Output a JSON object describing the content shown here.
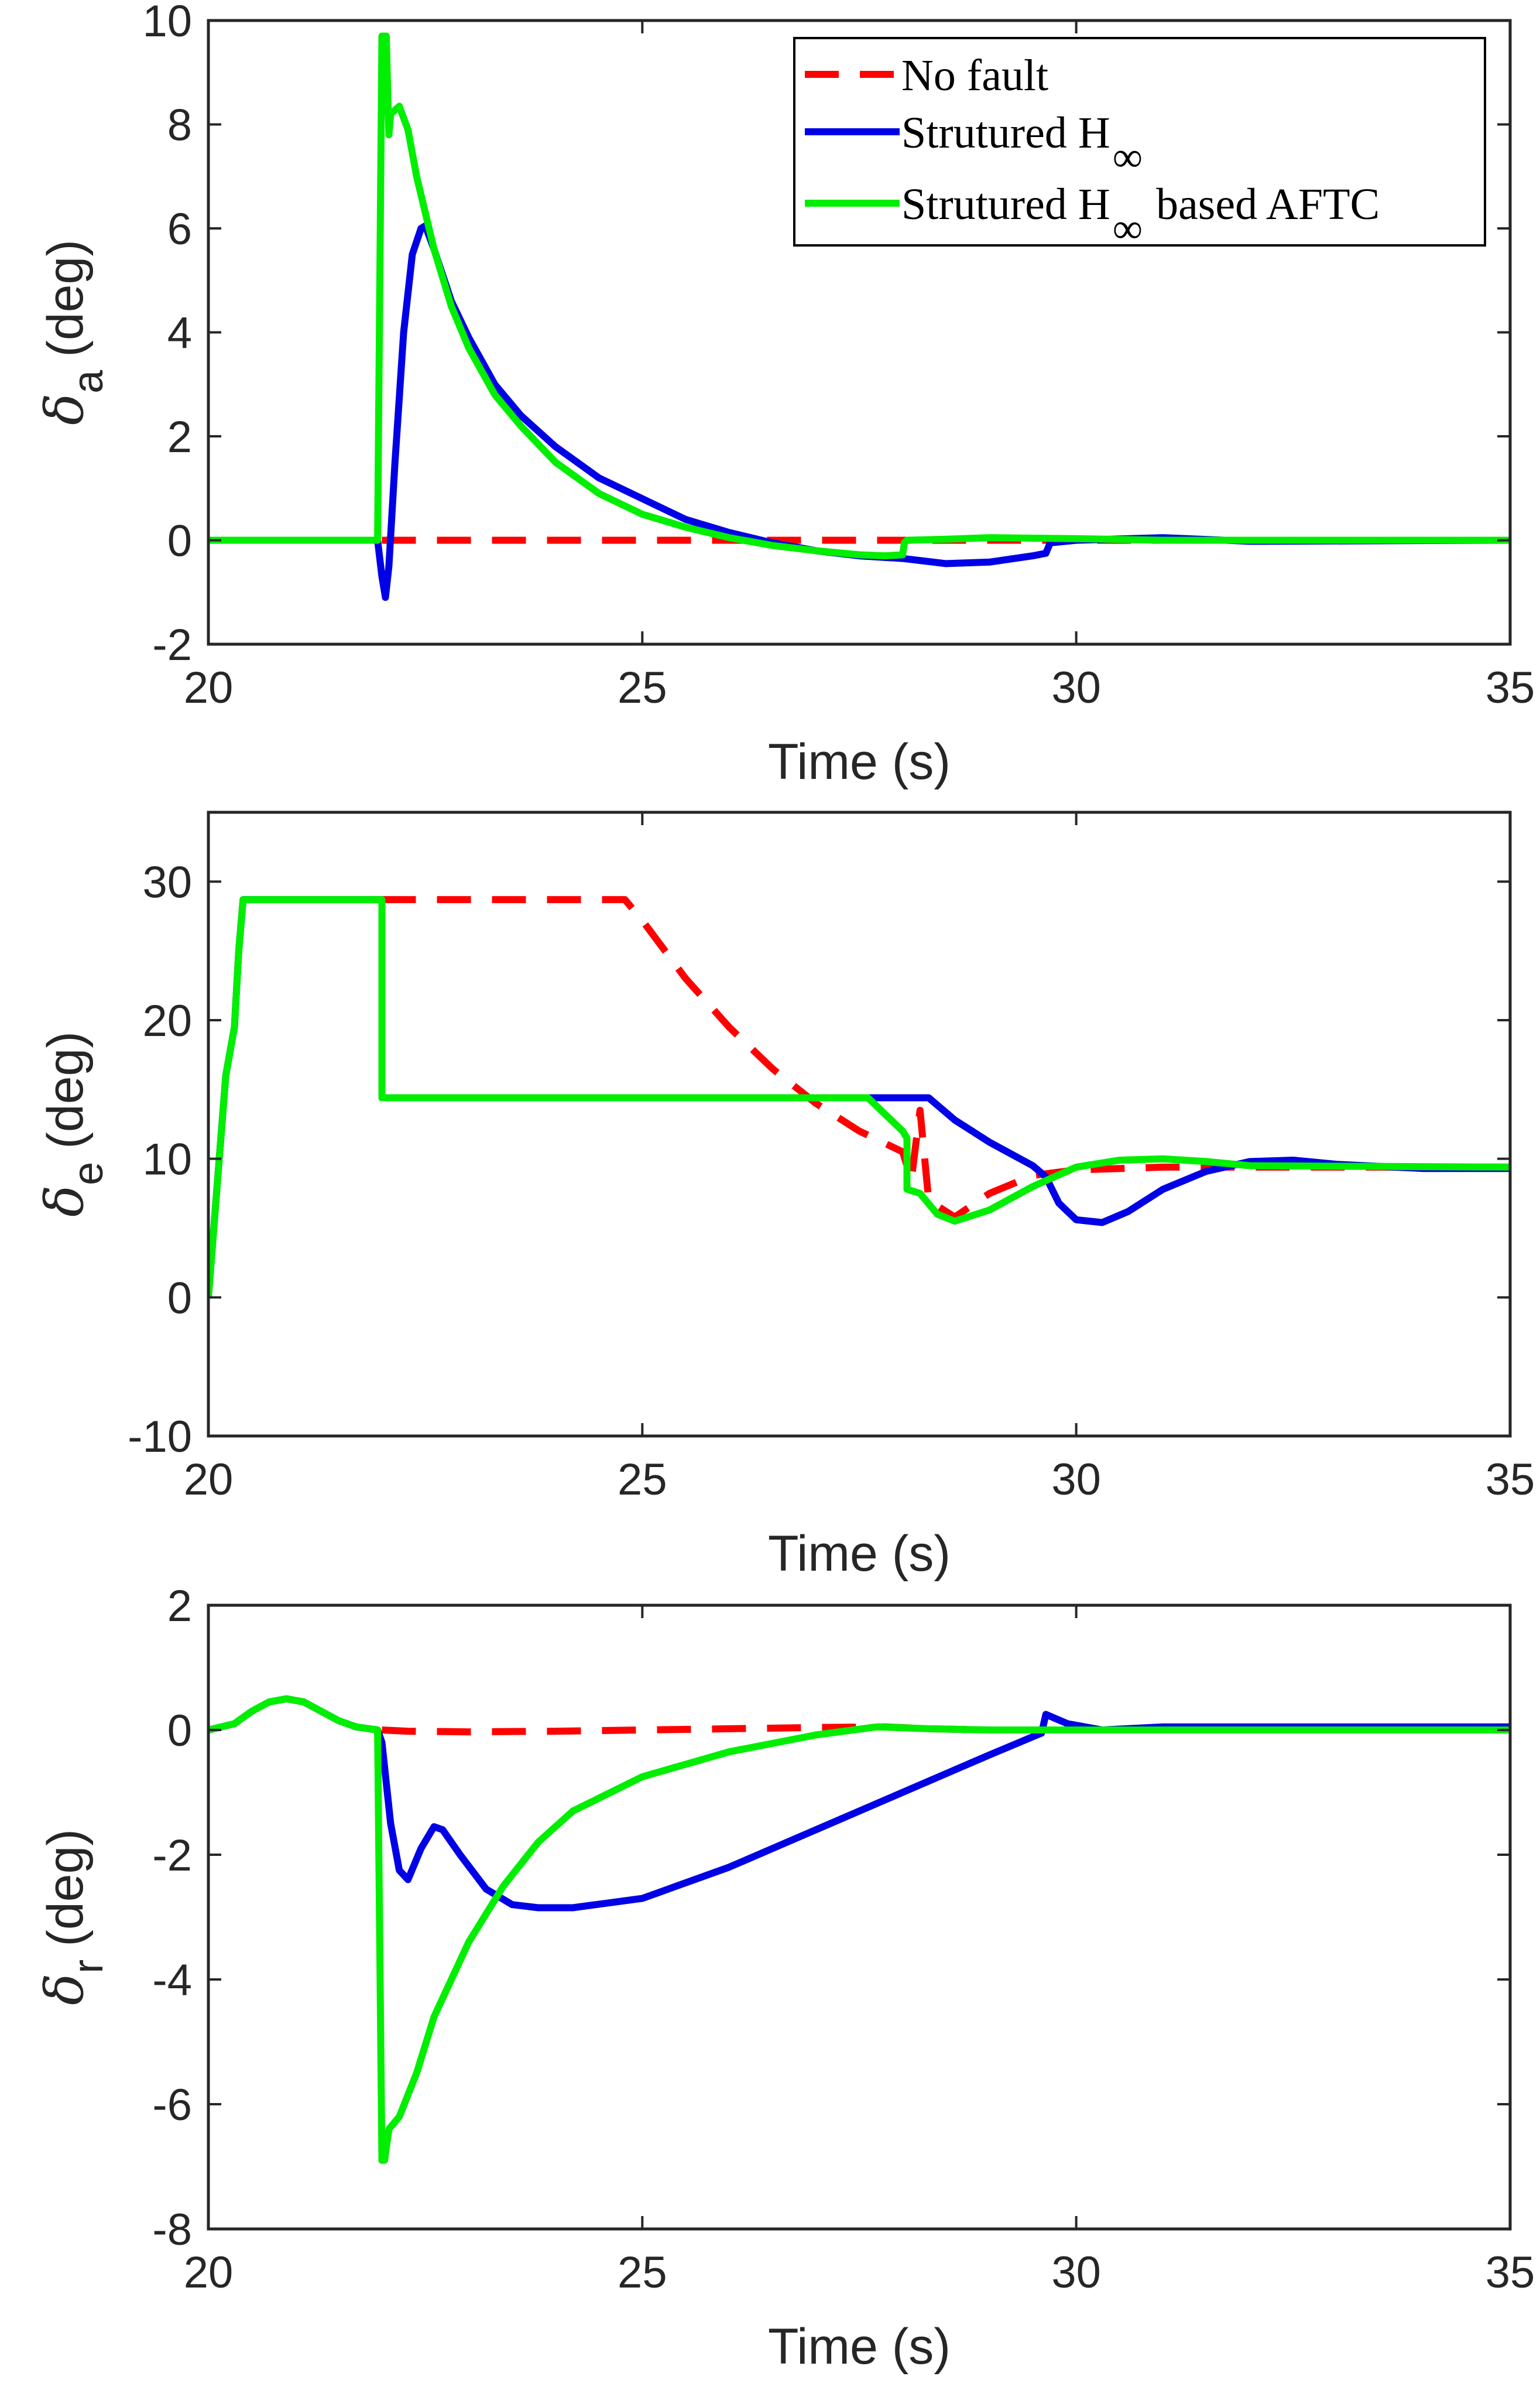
{
  "colors": {
    "no_fault": "#ff0000",
    "structured_hinf": "#0000e6",
    "aftc": "#00ee00",
    "axis": "#262626"
  },
  "legend": {
    "items": [
      {
        "key": "no_fault",
        "label": "No fault",
        "sub": "",
        "suffix": ""
      },
      {
        "key": "structured_hinf",
        "label": "Strutured H",
        "sub": "∞",
        "suffix": ""
      },
      {
        "key": "aftc",
        "label": "Strutured H",
        "sub": "∞",
        "suffix": " based AFTC"
      }
    ]
  },
  "chart_data": [
    {
      "type": "line",
      "id": "aileron",
      "ylabel_symbol": "δ",
      "ylabel_sub": "a",
      "ylabel_unit": "(deg)",
      "xlabel": "Time (s)",
      "xlim": [
        20,
        35
      ],
      "ylim": [
        -2,
        10
      ],
      "xticks": [
        20,
        25,
        30,
        35
      ],
      "yticks": [
        -2,
        0,
        2,
        4,
        6,
        8,
        10
      ],
      "legend_location": "top-right",
      "series": [
        {
          "key": "no_fault",
          "name": "No fault",
          "style": "dashed",
          "x": [
            22.0,
            27.0,
            28.0,
            35.0
          ],
          "y": [
            0,
            0,
            0,
            0
          ]
        },
        {
          "key": "structured_hinf",
          "name": "Strutured H∞",
          "style": "solid",
          "x": [
            20,
            21,
            21.95,
            22.0,
            22.04,
            22.08,
            22.15,
            22.25,
            22.35,
            22.45,
            22.5,
            22.6,
            22.8,
            23.0,
            23.3,
            23.6,
            24.0,
            24.5,
            25.0,
            25.5,
            26.0,
            26.5,
            27.0,
            27.5,
            28.0,
            28.5,
            29.0,
            29.5,
            29.65,
            29.7,
            30.0,
            31.0,
            32.0,
            35.0
          ],
          "y": [
            0,
            0,
            0,
            -0.7,
            -1.1,
            -0.5,
            1.5,
            4.0,
            5.5,
            6.0,
            6.05,
            5.6,
            4.6,
            3.9,
            3.0,
            2.4,
            1.8,
            1.2,
            0.8,
            0.4,
            0.15,
            -0.05,
            -0.2,
            -0.3,
            -0.35,
            -0.45,
            -0.42,
            -0.3,
            -0.25,
            -0.05,
            0,
            0.05,
            -0.02,
            0
          ]
        },
        {
          "key": "aftc",
          "name": "Strutured H∞ based AFTC",
          "style": "solid",
          "x": [
            20,
            21,
            21.95,
            22.0,
            22.05,
            22.08,
            22.1,
            22.2,
            22.3,
            22.4,
            22.6,
            22.8,
            23.0,
            23.3,
            23.6,
            24.0,
            24.5,
            25.0,
            25.5,
            26.0,
            26.5,
            27.0,
            27.5,
            27.8,
            28.0,
            28.02,
            28.05,
            28.5,
            29.0,
            30.0,
            31.0,
            35.0
          ],
          "y": [
            0,
            0,
            0,
            9.7,
            9.7,
            7.8,
            8.2,
            8.35,
            7.9,
            7.0,
            5.6,
            4.5,
            3.7,
            2.8,
            2.2,
            1.5,
            0.9,
            0.5,
            0.25,
            0.05,
            -0.1,
            -0.2,
            -0.28,
            -0.3,
            -0.28,
            -0.05,
            0,
            0.02,
            0.05,
            0.03,
            0,
            0
          ]
        }
      ]
    },
    {
      "type": "line",
      "id": "elevator",
      "ylabel_symbol": "δ",
      "ylabel_sub": "e",
      "ylabel_unit": "(deg)",
      "xlabel": "Time (s)",
      "xlim": [
        20,
        35
      ],
      "ylim": [
        -10,
        35
      ],
      "xticks": [
        20,
        25,
        30,
        35
      ],
      "yticks": [
        -10,
        0,
        10,
        20,
        30
      ],
      "series": [
        {
          "key": "no_fault",
          "name": "No fault",
          "style": "dashed",
          "x": [
            22.0,
            24.8,
            25.0,
            25.5,
            26.0,
            26.5,
            27.0,
            27.5,
            28.0,
            28.1,
            28.15,
            28.2,
            28.3,
            28.6,
            29.0,
            29.5,
            30.0,
            31.0,
            32.0,
            35.0
          ],
          "y": [
            28.7,
            28.7,
            27.2,
            23.0,
            19.5,
            16.5,
            14.0,
            12.0,
            10.5,
            8.5,
            11.0,
            13.5,
            7.0,
            5.8,
            7.5,
            8.8,
            9.2,
            9.4,
            9.4,
            9.4
          ]
        },
        {
          "key": "structured_hinf",
          "name": "Strutured H∞",
          "style": "solid",
          "x": [
            20.0,
            20.05,
            20.2,
            20.3,
            20.35,
            20.4,
            22.0,
            22.0,
            28.3,
            28.6,
            29.0,
            29.5,
            29.65,
            29.8,
            30.0,
            30.3,
            30.6,
            31.0,
            31.5,
            32.0,
            32.5,
            33.0,
            34.0,
            35.0
          ],
          "y": [
            0,
            4,
            16,
            19.5,
            25,
            28.7,
            28.7,
            14.4,
            14.4,
            12.8,
            11.2,
            9.5,
            8.7,
            6.8,
            5.6,
            5.4,
            6.2,
            7.8,
            9.1,
            9.8,
            9.9,
            9.6,
            9.3,
            9.3
          ]
        },
        {
          "key": "aftc",
          "name": "Strutured H∞ based AFTC",
          "style": "solid",
          "x": [
            20.0,
            20.05,
            20.2,
            20.3,
            20.35,
            20.4,
            22.0,
            22.0,
            27.6,
            28.0,
            28.05,
            28.05,
            28.2,
            28.4,
            28.6,
            29.0,
            29.5,
            30.0,
            30.5,
            31.0,
            31.5,
            32.0,
            35.0
          ],
          "y": [
            0,
            4,
            16,
            19.5,
            25,
            28.7,
            28.7,
            14.4,
            14.4,
            12.0,
            11.5,
            7.8,
            7.5,
            6.0,
            5.5,
            6.3,
            8.0,
            9.4,
            9.9,
            10.0,
            9.8,
            9.5,
            9.4
          ]
        }
      ]
    },
    {
      "type": "line",
      "id": "rudder",
      "ylabel_symbol": "δ",
      "ylabel_sub": "r",
      "ylabel_unit": "(deg)",
      "xlabel": "Time (s)",
      "xlim": [
        20,
        35
      ],
      "ylim": [
        -8,
        2
      ],
      "xticks": [
        20,
        25,
        30,
        35
      ],
      "yticks": [
        -8,
        -6,
        -4,
        -2,
        0,
        2
      ],
      "series": [
        {
          "key": "no_fault",
          "name": "No fault",
          "style": "dashed",
          "x": [
            22.0,
            22.3,
            23.0,
            24.0,
            25.0,
            26.0,
            27.0,
            27.8,
            28.3,
            29.0,
            29.6,
            30.0,
            35.0
          ],
          "y": [
            0,
            -0.02,
            -0.03,
            -0.02,
            0,
            0.02,
            0.04,
            0.05,
            0.02,
            0,
            0,
            0,
            0
          ]
        },
        {
          "key": "structured_hinf",
          "name": "Strutured H∞",
          "style": "solid",
          "x": [
            20.0,
            20.3,
            20.5,
            20.7,
            20.9,
            21.1,
            21.3,
            21.5,
            21.7,
            21.95,
            22.0,
            22.1,
            22.2,
            22.3,
            22.45,
            22.6,
            22.7,
            22.9,
            23.2,
            23.5,
            23.8,
            24.2,
            25.0,
            26.0,
            27.0,
            28.0,
            29.0,
            29.6,
            29.65,
            29.9,
            30.3,
            31.0,
            32.0,
            35.0
          ],
          "y": [
            0,
            0.1,
            0.3,
            0.45,
            0.5,
            0.45,
            0.3,
            0.15,
            0.05,
            0,
            -0.2,
            -1.5,
            -2.25,
            -2.4,
            -1.9,
            -1.55,
            -1.6,
            -2.0,
            -2.55,
            -2.8,
            -2.85,
            -2.85,
            -2.7,
            -2.2,
            -1.6,
            -1.0,
            -0.4,
            -0.05,
            0.25,
            0.1,
            0,
            0.05,
            0.05,
            0.05
          ]
        },
        {
          "key": "aftc",
          "name": "Strutured H∞ based AFTC",
          "style": "solid",
          "x": [
            20.0,
            20.3,
            20.5,
            20.7,
            20.9,
            21.1,
            21.3,
            21.5,
            21.7,
            21.95,
            22.0,
            22.03,
            22.08,
            22.2,
            22.4,
            22.6,
            23.0,
            23.4,
            23.8,
            24.2,
            25.0,
            26.0,
            27.0,
            27.7,
            28.3,
            29.0,
            30.0,
            35.0
          ],
          "y": [
            0,
            0.1,
            0.3,
            0.45,
            0.5,
            0.45,
            0.3,
            0.15,
            0.05,
            0,
            -6.9,
            -6.9,
            -6.4,
            -6.2,
            -5.5,
            -4.6,
            -3.4,
            -2.5,
            -1.8,
            -1.3,
            -0.75,
            -0.35,
            -0.08,
            0.05,
            0.02,
            0,
            0,
            0
          ]
        }
      ]
    }
  ]
}
